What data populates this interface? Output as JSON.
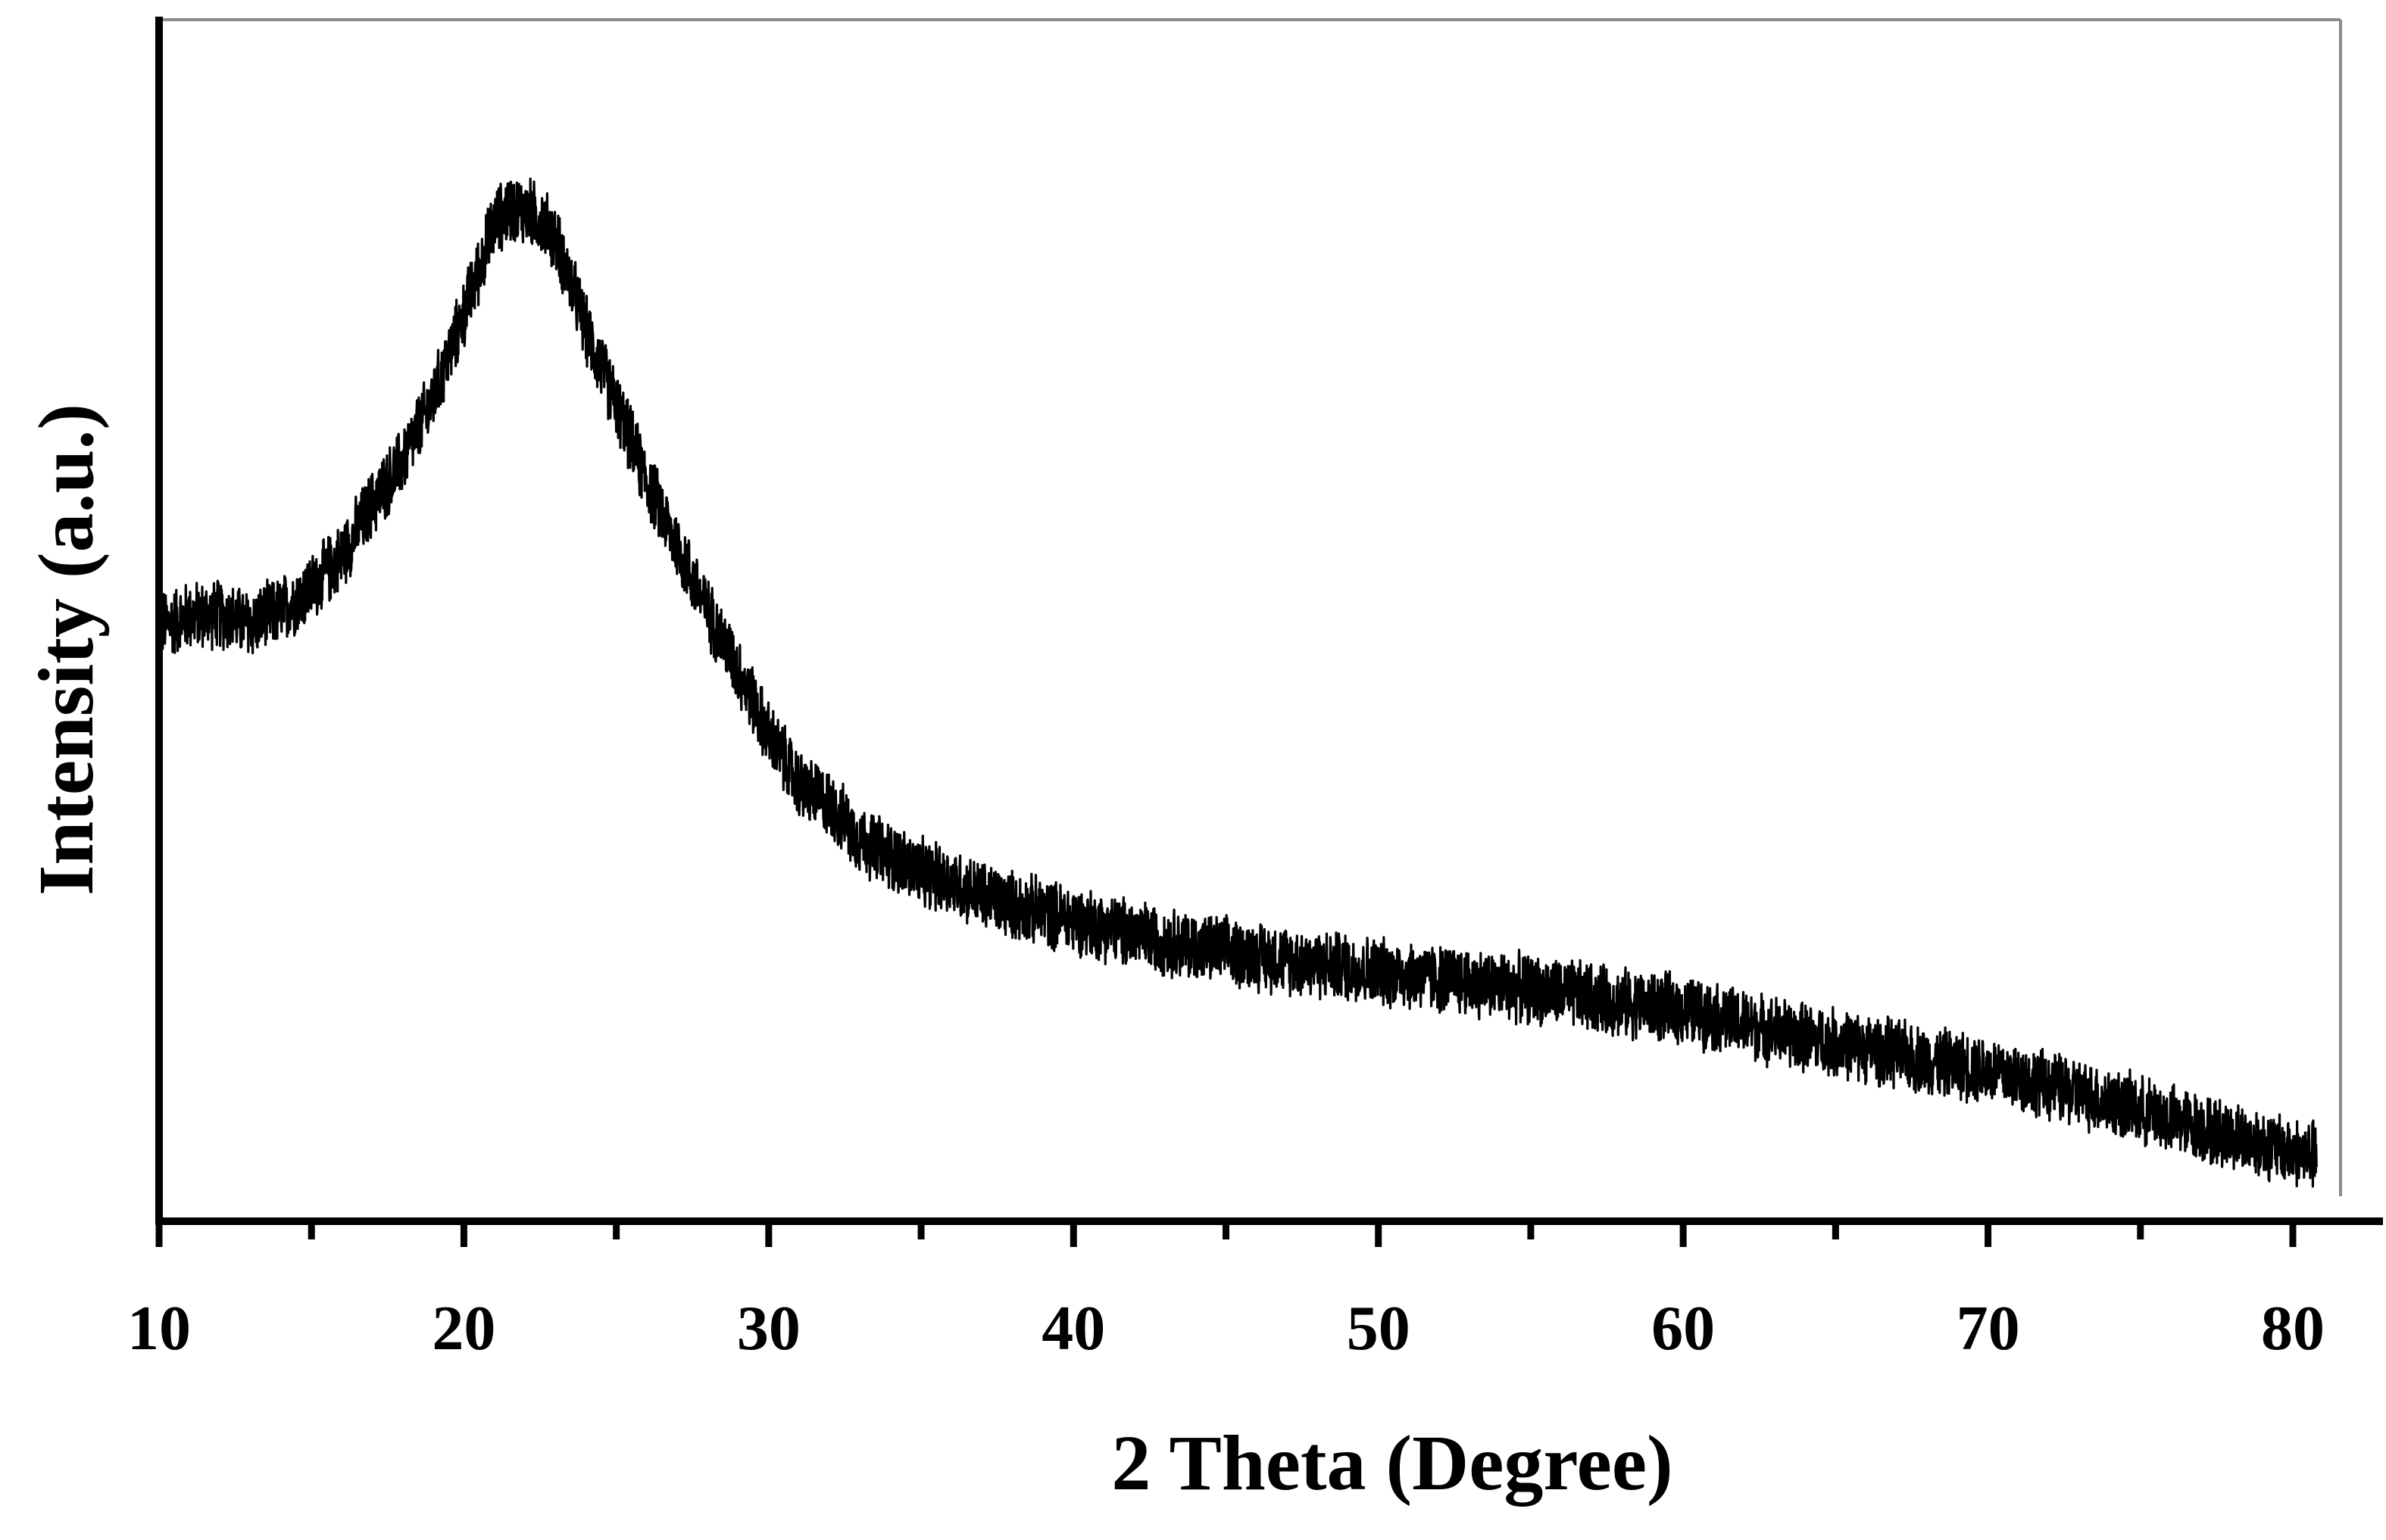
{
  "chart_data": {
    "type": "line",
    "title": "",
    "xlabel": "2 Theta (Degree)",
    "ylabel": "Intensity (a.u.)",
    "xlim": [
      10,
      81
    ],
    "ylim": [
      0,
      100
    ],
    "x_ticks": [
      10,
      20,
      30,
      40,
      50,
      60,
      70,
      80
    ],
    "x_tick_labels": [
      "10",
      "20",
      "30",
      "40",
      "50",
      "60",
      "70",
      "80"
    ],
    "x_minor_ticks": [
      15,
      25,
      35,
      45,
      55,
      65,
      75
    ],
    "y_tick_labels_shown": false,
    "grid": false,
    "legend": "none",
    "line_color": "#000000",
    "series": [
      {
        "x": [
          10,
          11,
          12,
          13,
          14,
          15,
          16,
          17,
          18,
          19,
          20,
          20.5,
          21,
          21.5,
          22,
          22.5,
          23,
          23.5,
          24,
          25,
          26,
          27,
          28,
          29,
          30,
          31,
          32,
          33,
          34,
          35,
          36,
          37,
          38,
          39,
          40,
          42,
          44,
          46,
          48,
          50,
          52,
          54,
          56,
          58,
          60,
          62,
          64,
          66,
          68,
          70,
          72,
          74,
          76,
          78,
          80,
          80.8
        ],
        "y": [
          49.5,
          50.4,
          50.5,
          49.7,
          50.8,
          52.7,
          55.4,
          59.7,
          63.3,
          68.5,
          75.5,
          79.3,
          83.1,
          84.3,
          84.1,
          83.5,
          81.8,
          78.2,
          74.2,
          68.0,
          61.6,
          56.2,
          50.7,
          45.9,
          40.5,
          36.3,
          34.7,
          31.8,
          30.4,
          29.0,
          28.3,
          27.1,
          26.3,
          25.7,
          25.1,
          23.9,
          22.8,
          22.1,
          21.4,
          20.8,
          20.2,
          19.6,
          19.0,
          18.2,
          17.6,
          16.4,
          15.3,
          14.4,
          13.4,
          12.6,
          11.3,
          9.9,
          8.5,
          7.1,
          5.8,
          5.4
        ],
        "noise_amplitude": 3.2
      }
    ]
  }
}
